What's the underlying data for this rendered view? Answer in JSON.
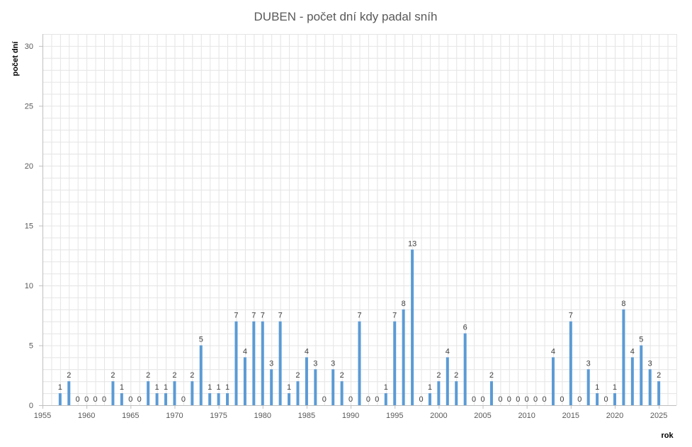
{
  "chart_data": {
    "type": "bar",
    "title": "DUBEN - počet dní kdy padal sníh",
    "xlabel": "rok",
    "ylabel": "počet dní",
    "xlim": [
      1955,
      2027
    ],
    "ylim": [
      0,
      31
    ],
    "x_ticks": [
      1955,
      1960,
      1965,
      1970,
      1975,
      1980,
      1985,
      1990,
      1995,
      2000,
      2005,
      2010,
      2015,
      2020,
      2025
    ],
    "y_ticks": [
      0,
      5,
      10,
      15,
      20,
      25,
      30
    ],
    "grid": true,
    "bar_color": "#5B9BD5",
    "x": [
      1957,
      1958,
      1959,
      1960,
      1961,
      1962,
      1963,
      1964,
      1965,
      1966,
      1967,
      1968,
      1969,
      1970,
      1971,
      1972,
      1973,
      1974,
      1975,
      1976,
      1977,
      1978,
      1979,
      1980,
      1981,
      1982,
      1983,
      1984,
      1985,
      1986,
      1987,
      1988,
      1989,
      1990,
      1991,
      1992,
      1993,
      1994,
      1995,
      1996,
      1997,
      1998,
      1999,
      2000,
      2001,
      2002,
      2003,
      2004,
      2005,
      2006,
      2007,
      2008,
      2009,
      2010,
      2011,
      2012,
      2013,
      2014,
      2015,
      2016,
      2017,
      2018,
      2019,
      2020,
      2021,
      2022,
      2023,
      2024,
      2025
    ],
    "values": [
      1,
      2,
      0,
      0,
      0,
      0,
      2,
      1,
      0,
      0,
      2,
      1,
      1,
      2,
      0,
      2,
      5,
      1,
      1,
      1,
      7,
      4,
      7,
      7,
      3,
      7,
      1,
      2,
      4,
      3,
      0,
      3,
      2,
      0,
      7,
      0,
      0,
      1,
      7,
      8,
      13,
      0,
      1,
      2,
      4,
      2,
      6,
      0,
      0,
      2,
      0,
      0,
      0,
      0,
      0,
      0,
      4,
      0,
      7,
      0,
      3,
      1,
      0,
      1,
      8,
      4,
      5,
      3,
      2
    ]
  }
}
